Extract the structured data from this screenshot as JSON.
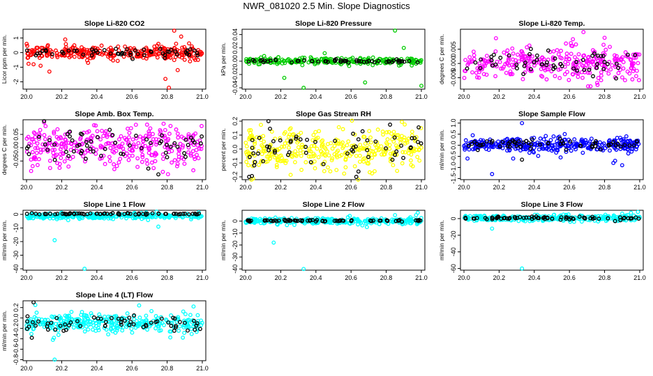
{
  "figure": {
    "title": "NWR_081020  2.5 Min. Slope Diagnostics"
  },
  "chart_data": [
    {
      "type": "scatter",
      "title": "Slope Li-820 CO2",
      "ylabel": "Licor ppm per min.",
      "xlim": [
        19.98,
        21.02
      ],
      "ylim": [
        -2.5,
        1.6
      ],
      "xticks": [
        20.0,
        20.2,
        20.4,
        20.6,
        20.8,
        21.0
      ],
      "xtick_labels": [
        "20.0",
        "20.2",
        "20.4",
        "20.6",
        "20.8",
        "21.0"
      ],
      "yticks": [
        -2,
        -1,
        0,
        1
      ],
      "ytick_labels": [
        "-2",
        "-1",
        "0",
        "1"
      ],
      "series": [
        {
          "color": "#ff0000",
          "center": 0.0,
          "spread": 0.22,
          "n": 300,
          "outliers": [
            [
              20.04,
              -0.8
            ],
            [
              20.08,
              -0.9
            ],
            [
              20.13,
              -1.3
            ],
            [
              20.22,
              0.9
            ],
            [
              20.35,
              -0.7
            ],
            [
              20.75,
              0.6
            ],
            [
              20.79,
              -1.8
            ],
            [
              20.81,
              -2.4
            ],
            [
              20.84,
              1.5
            ],
            [
              20.86,
              -1.2
            ],
            [
              20.88,
              1.1
            ],
            [
              20.93,
              -0.6
            ],
            [
              20.96,
              -0.5
            ]
          ]
        },
        {
          "color": "#000000",
          "center": 0.0,
          "spread": 0.15,
          "n": 55,
          "outliers": []
        }
      ]
    },
    {
      "type": "scatter",
      "title": "Slope Li-820 Pressure",
      "ylabel": "kPa per min.",
      "xlim": [
        19.98,
        21.02
      ],
      "ylim": [
        -0.042,
        0.048
      ],
      "xticks": [
        20.0,
        20.2,
        20.4,
        20.6,
        20.8,
        21.0
      ],
      "xtick_labels": [
        "20.0",
        "20.2",
        "20.4",
        "20.6",
        "20.8",
        "21.0"
      ],
      "yticks": [
        -0.04,
        -0.02,
        0.0,
        0.02,
        0.04
      ],
      "ytick_labels": [
        "-0.04",
        "-0.02",
        "0.00",
        "0.02",
        "0.04"
      ],
      "series": [
        {
          "color": "#00cc00",
          "center": 0.0,
          "spread": 0.0025,
          "n": 240,
          "outliers": [
            [
              20.22,
              -0.025
            ],
            [
              20.33,
              -0.04
            ],
            [
              20.45,
              0.012
            ],
            [
              20.68,
              -0.032
            ],
            [
              20.85,
              0.046
            ],
            [
              20.9,
              0.02
            ],
            [
              21.0,
              -0.037
            ]
          ]
        },
        {
          "color": "#000000",
          "center": 0.0,
          "spread": 0.0012,
          "n": 55,
          "outliers": []
        }
      ]
    },
    {
      "type": "scatter",
      "title": "Slope Li-820 Temp.",
      "ylabel": "degrees C per min.",
      "xlim": [
        19.98,
        21.02
      ],
      "ylim": [
        -0.009,
        0.012
      ],
      "xticks": [
        20.0,
        20.2,
        20.4,
        20.6,
        20.8,
        21.0
      ],
      "xtick_labels": [
        "20.0",
        "20.2",
        "20.4",
        "20.6",
        "20.8",
        "21.0"
      ],
      "yticks": [
        -0.005,
        0.0,
        0.005
      ],
      "ytick_labels": [
        "-0.005",
        "0.000",
        "0.005"
      ],
      "series": [
        {
          "color": "#ff00ff",
          "center": 0.0,
          "spread": 0.0028,
          "n": 300,
          "outliers": [
            [
              20.58,
              0.007
            ],
            [
              20.62,
              0.0085
            ],
            [
              20.68,
              0.011
            ],
            [
              20.72,
              -0.008
            ],
            [
              20.76,
              -0.0075
            ],
            [
              20.8,
              0.009
            ]
          ]
        },
        {
          "color": "#000000",
          "center": 0.0005,
          "spread": 0.0022,
          "n": 55,
          "outliers": []
        }
      ]
    },
    {
      "type": "scatter",
      "title": "Slope Amb. Box Temp.",
      "ylabel": "degrees C per min.",
      "xlim": [
        19.98,
        21.02
      ],
      "ylim": [
        -0.12,
        0.105
      ],
      "xticks": [
        20.0,
        20.2,
        20.4,
        20.6,
        20.8,
        21.0
      ],
      "xtick_labels": [
        "20.0",
        "20.2",
        "20.4",
        "20.6",
        "20.8",
        "21.0"
      ],
      "yticks": [
        -0.05,
        0.0,
        0.05
      ],
      "ytick_labels": [
        "-0.05",
        "0.00",
        "0.05"
      ],
      "series": [
        {
          "color": "#ff00ff",
          "center": 0.0,
          "spread": 0.038,
          "n": 320,
          "outliers": [
            [
              20.1,
              0.095
            ],
            [
              20.78,
              0.09
            ]
          ]
        },
        {
          "color": "#000000",
          "center": 0.0,
          "spread": 0.03,
          "n": 60,
          "outliers": [
            [
              20.1,
              0.1
            ],
            [
              20.75,
              -0.1
            ]
          ]
        }
      ]
    },
    {
      "type": "scatter",
      "title": "Slope Gas Stream RH",
      "ylabel": "percent per min.",
      "xlim": [
        19.98,
        21.02
      ],
      "ylim": [
        -0.22,
        0.21
      ],
      "xticks": [
        20.0,
        20.2,
        20.4,
        20.6,
        20.8,
        21.0
      ],
      "xtick_labels": [
        "20.0",
        "20.2",
        "20.4",
        "20.6",
        "20.8",
        "21.0"
      ],
      "yticks": [
        -0.2,
        -0.1,
        0.0,
        0.1,
        0.2
      ],
      "ytick_labels": [
        "-0.2",
        "-0.1",
        "0.0",
        "0.1",
        "0.2"
      ],
      "series": [
        {
          "color": "#ffff00",
          "center": 0.0,
          "spread": 0.075,
          "n": 340,
          "outliers": []
        },
        {
          "color": "#000000",
          "center": 0.0,
          "spread": 0.08,
          "n": 60,
          "outliers": [
            [
              20.13,
              0.2
            ],
            [
              20.02,
              -0.2
            ],
            [
              20.63,
              -0.2
            ]
          ]
        }
      ]
    },
    {
      "type": "scatter",
      "title": "Slope Sample Flow",
      "ylabel": "ml/min per min.",
      "xlim": [
        19.98,
        21.02
      ],
      "ylim": [
        -1.55,
        1.15
      ],
      "xticks": [
        20.0,
        20.2,
        20.4,
        20.6,
        20.8,
        21.0
      ],
      "xtick_labels": [
        "20.0",
        "20.2",
        "20.4",
        "20.6",
        "20.8",
        "21.0"
      ],
      "yticks": [
        -1.5,
        -1.0,
        -0.5,
        0.0,
        0.5,
        1.0
      ],
      "ytick_labels": [
        "-1.5",
        "-1.0",
        "-0.5",
        "0.0",
        "0.5",
        "1.0"
      ],
      "series": [
        {
          "color": "#0000ff",
          "center": 0.0,
          "spread": 0.16,
          "n": 330,
          "outliers": [
            [
              20.16,
              -1.3
            ],
            [
              20.33,
              1.0
            ],
            [
              20.28,
              -0.6
            ],
            [
              20.55,
              -0.55
            ],
            [
              20.85,
              -0.8
            ],
            [
              20.86,
              -0.7
            ],
            [
              20.9,
              -0.9
            ],
            [
              20.02,
              -0.6
            ],
            [
              20.05,
              0.45
            ]
          ]
        },
        {
          "color": "#000000",
          "center": 0.05,
          "spread": 0.14,
          "n": 60,
          "outliers": [
            [
              20.33,
              -0.65
            ]
          ]
        }
      ]
    },
    {
      "type": "scatter",
      "title": "Slope Line 1 Flow",
      "ylabel": "ml/min per min.",
      "xlim": [
        19.98,
        21.02
      ],
      "ylim": [
        -41,
        3
      ],
      "xticks": [
        20.0,
        20.2,
        20.4,
        20.6,
        20.8,
        21.0
      ],
      "xtick_labels": [
        "20.0",
        "20.2",
        "20.4",
        "20.6",
        "20.8",
        "21.0"
      ],
      "yticks": [
        -40,
        -30,
        -20,
        -10,
        0
      ],
      "ytick_labels": [
        "-40",
        "-30",
        "-20",
        "-10",
        "0"
      ],
      "series": [
        {
          "color": "#00ffff",
          "center": -1.2,
          "spread": 0.9,
          "n": 320,
          "outliers": [
            [
              20.16,
              -19
            ],
            [
              20.33,
              -40
            ],
            [
              20.75,
              -9
            ],
            [
              20.74,
              2
            ],
            [
              20.98,
              1.5
            ]
          ]
        },
        {
          "color": "#000000",
          "center": 0.4,
          "spread": 0.3,
          "n": 70,
          "outliers": []
        }
      ]
    },
    {
      "type": "scatter",
      "title": "Slope Line 2 Flow",
      "ylabel": "ml/min per min.",
      "xlim": [
        19.98,
        21.02
      ],
      "ylim": [
        -41,
        9
      ],
      "xticks": [
        20.0,
        20.2,
        20.4,
        20.6,
        20.8,
        21.0
      ],
      "xtick_labels": [
        "20.0",
        "20.2",
        "20.4",
        "20.6",
        "20.8",
        "21.0"
      ],
      "yticks": [
        -40,
        -30,
        -20,
        -10,
        0
      ],
      "ytick_labels": [
        "-40",
        "-30",
        "-20",
        "-10",
        "0"
      ],
      "series": [
        {
          "color": "#00ffff",
          "center": 0.0,
          "spread": 1.2,
          "n": 300,
          "outliers": [
            [
              20.16,
              -18
            ],
            [
              20.33,
              -40
            ],
            [
              20.98,
              7
            ],
            [
              20.97,
              5
            ],
            [
              20.85,
              5
            ],
            [
              20.69,
              -5
            ]
          ]
        },
        {
          "color": "#000000",
          "center": 0.3,
          "spread": 0.35,
          "n": 70,
          "outliers": []
        }
      ]
    },
    {
      "type": "scatter",
      "title": "Slope Line 3 Flow",
      "ylabel": "ml/min per min.",
      "xlim": [
        19.98,
        21.02
      ],
      "ylim": [
        -62,
        10
      ],
      "xticks": [
        20.0,
        20.2,
        20.4,
        20.6,
        20.8,
        21.0
      ],
      "xtick_labels": [
        "20.0",
        "20.2",
        "20.4",
        "20.6",
        "20.8",
        "21.0"
      ],
      "yticks": [
        -60,
        -40,
        -20,
        0
      ],
      "ytick_labels": [
        "-60",
        "-40",
        "-20",
        "0"
      ],
      "series": [
        {
          "color": "#00ffff",
          "center": 0.5,
          "spread": 1.8,
          "n": 300,
          "outliers": [
            [
              20.16,
              -12
            ],
            [
              20.33,
              -60
            ],
            [
              20.9,
              6
            ],
            [
              20.95,
              7
            ],
            [
              20.99,
              8
            ]
          ]
        },
        {
          "color": "#000000",
          "center": 0.6,
          "spread": 1.0,
          "n": 70,
          "outliers": [
            [
              20.86,
              -3
            ],
            [
              20.89,
              -2
            ]
          ]
        }
      ]
    },
    {
      "type": "scatter",
      "title": "Slope Line 4 (LT) Flow",
      "ylabel": "ml/min per min.",
      "xlim": [
        19.98,
        21.02
      ],
      "ylim": [
        -0.82,
        0.33
      ],
      "xticks": [
        20.0,
        20.2,
        20.4,
        20.6,
        20.8,
        21.0
      ],
      "xtick_labels": [
        "20.0",
        "20.2",
        "20.4",
        "20.6",
        "20.8",
        "21.0"
      ],
      "yticks": [
        -0.8,
        -0.6,
        -0.4,
        -0.2,
        0.0,
        0.2
      ],
      "ytick_labels": [
        "-0.8",
        "-0.6",
        "-0.4",
        "-0.2",
        "0.0",
        "0.2"
      ],
      "series": [
        {
          "color": "#00ffff",
          "center": -0.1,
          "spread": 0.09,
          "n": 330,
          "outliers": [
            [
              20.16,
              -0.8
            ],
            [
              20.05,
              0.25
            ],
            [
              20.15,
              -0.42
            ],
            [
              20.95,
              0.22
            ]
          ]
        },
        {
          "color": "#000000",
          "center": -0.1,
          "spread": 0.08,
          "n": 60,
          "outliers": [
            [
              20.04,
              0.3
            ],
            [
              20.03,
              -0.38
            ]
          ]
        }
      ]
    }
  ]
}
